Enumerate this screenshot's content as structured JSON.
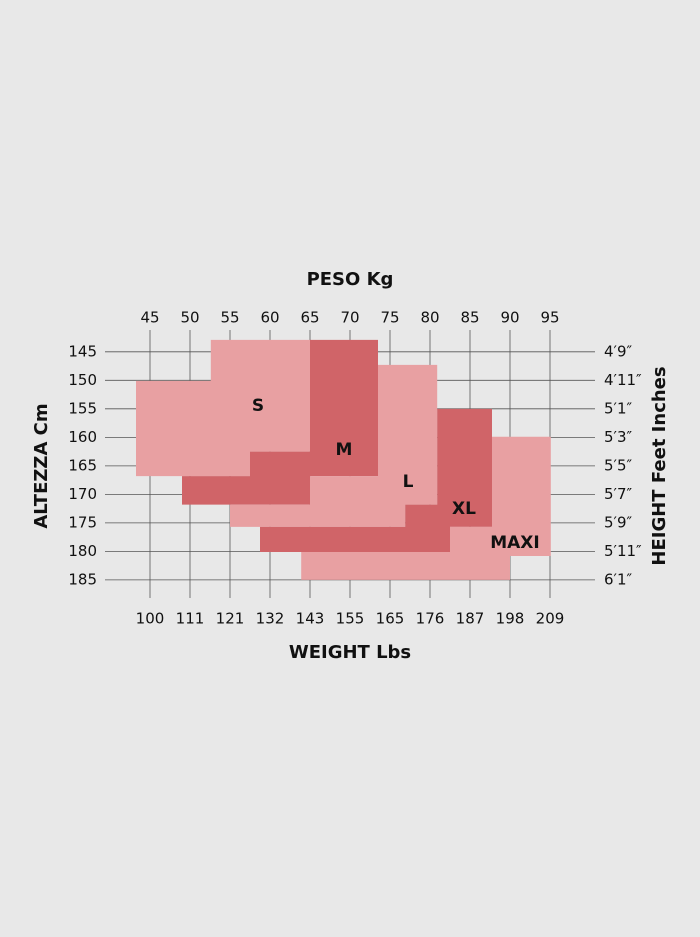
{
  "chart_data": {
    "type": "size_chart",
    "top_axis_label": "PESO Kg",
    "bottom_axis_label": "WEIGHT Lbs",
    "left_axis_label": "ALTEZZA Cm",
    "right_axis_label": "HEIGHT Feet Inches",
    "xlim": [
      43,
      97
    ],
    "ylim": [
      141,
      188
    ],
    "xticks": [
      45,
      50,
      55,
      60,
      65,
      70,
      75,
      80,
      85,
      90,
      95
    ],
    "x2ticks": [
      "100",
      "111",
      "121",
      "132",
      "143",
      "155",
      "165",
      "176",
      "187",
      "198",
      "209"
    ],
    "yticks": [
      145,
      150,
      155,
      160,
      165,
      170,
      175,
      180,
      185
    ],
    "y2ticks": [
      "4′9″",
      "4′11″",
      "5′1″",
      "5′3″",
      "5′5″",
      "5′7″",
      "5′9″",
      "5′11″",
      "6′1″"
    ],
    "grid": true,
    "sizes": [
      {
        "name": "S",
        "color": "#e8a0a2",
        "x": [
          52.6,
          65,
          65,
          57.5,
          57.5,
          43.25,
          43.25,
          52.6
        ],
        "y": [
          142.9,
          142.9,
          162.5,
          162.5,
          166.8,
          166.8,
          150.1,
          150.1
        ]
      },
      {
        "name": "M",
        "color": "#d06468",
        "x": [
          65,
          73.5,
          73.5,
          65,
          65,
          49,
          49,
          57.5,
          57.5,
          65
        ],
        "y": [
          142.9,
          142.9,
          166.8,
          166.8,
          171.8,
          171.8,
          166.8,
          166.8,
          162.5,
          162.5
        ]
      },
      {
        "name": "L",
        "color": "#e8a0a2",
        "x": [
          73.5,
          80.9,
          80.9,
          76.9,
          76.9,
          55,
          55,
          65,
          65,
          73.5
        ],
        "y": [
          147.3,
          147.3,
          171.8,
          171.8,
          175.7,
          175.7,
          171.8,
          171.8,
          166.8,
          166.8
        ]
      },
      {
        "name": "XL",
        "color": "#d06468",
        "x": [
          80.9,
          87.75,
          87.75,
          82.5,
          82.5,
          58.75,
          58.75,
          76.9,
          76.9,
          80.9
        ],
        "y": [
          155,
          155,
          175.7,
          175.7,
          180.1,
          180.1,
          175.7,
          175.7,
          171.8,
          171.8
        ]
      },
      {
        "name": "MAXI",
        "color": "#e8a0a2",
        "x": [
          87.75,
          95.1,
          95.1,
          90,
          90,
          63.9,
          63.9,
          82.5,
          82.5,
          87.75
        ],
        "y": [
          159.9,
          159.9,
          180.8,
          180.8,
          185,
          185,
          180.1,
          180.1,
          175.7,
          175.7
        ]
      }
    ]
  }
}
